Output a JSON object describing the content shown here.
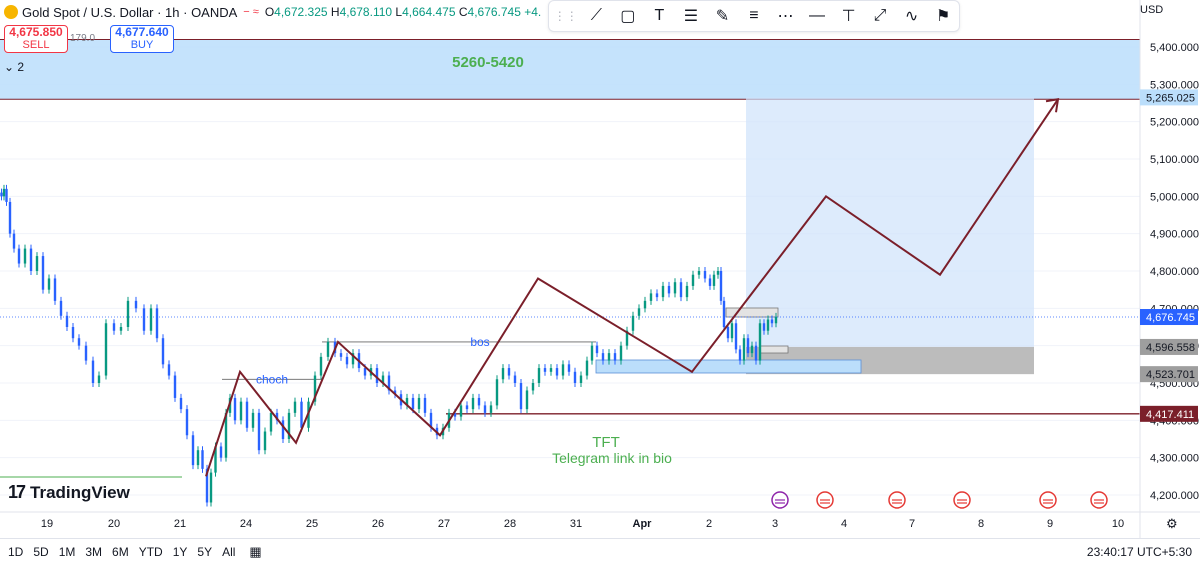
{
  "header": {
    "symbol_title": "Gold Spot / U.S. Dollar · 1h · OANDA",
    "open_label": "O",
    "open": "4,672.325",
    "high_label": "H",
    "high": "4,678.110",
    "low_label": "L",
    "low": "4,664.475",
    "close_label": "C",
    "close": "4,676.745",
    "change": "+4.",
    "currency": "USD"
  },
  "trade": {
    "sell_price": "4,675.850",
    "sell_label": "SELL",
    "spread": "179.0",
    "buy_price": "4,677.640",
    "buy_label": "BUY"
  },
  "indicators_toggle": "2",
  "drawing_tools": [
    "trend-line-icon",
    "rectangle-icon",
    "text-icon",
    "long-position-icon",
    "brush-icon",
    "fib-icon",
    "measure-icon",
    "horizontal-line-icon",
    "cross-line-icon",
    "price-range-icon",
    "path-icon",
    "flag-icon"
  ],
  "annotations": {
    "target_zone_label": "5260-5420",
    "bos_label": "bos",
    "choch_label": "choch",
    "tft_label": "TFT",
    "telegram_label": "Telegram link in bio"
  },
  "branding": {
    "logo_text": "TradingView"
  },
  "bottom_bar": {
    "timeframes": [
      "1D",
      "5D",
      "1M",
      "3M",
      "6M",
      "YTD",
      "1Y",
      "5Y",
      "All"
    ],
    "clock": "23:40:17 UTC+5:30"
  },
  "colors": {
    "up": "#089981",
    "down": "#2962ff",
    "zigzag": "#7b1f2a",
    "zone_fill": "#bbdefb",
    "projection_fill": "#cfe3fb",
    "gray_box": "#9e9e9e",
    "text_green": "#4caf50",
    "text_blue": "#2962ff"
  },
  "chart_data": {
    "type": "candlestick",
    "title": "Gold Spot / U.S. Dollar · 1h · OANDA",
    "x_tick_labels": [
      "19",
      "20",
      "21",
      "24",
      "25",
      "26",
      "27",
      "28",
      "31",
      "Apr",
      "2",
      "3",
      "4",
      "7",
      "8",
      "9",
      "10"
    ],
    "y_tick_labels": [
      4200,
      4300,
      4400,
      4500,
      4600,
      4700,
      4800,
      4900,
      5000,
      5100,
      5200,
      5300,
      5400
    ],
    "ylim": [
      4170,
      5430
    ],
    "price_labels": [
      {
        "value": 5265.025,
        "text": "5,265.025",
        "style": "zone"
      },
      {
        "value": 4676.745,
        "text": "4,676.745",
        "style": "last"
      },
      {
        "value": 4596.558,
        "text": "4,596.558",
        "style": "gray"
      },
      {
        "value": 4523.701,
        "text": "4,523.701",
        "style": "gray"
      },
      {
        "value": 4417.411,
        "text": "4,417.411",
        "style": "red"
      }
    ],
    "target_zone": [
      5260,
      5420
    ],
    "price_path": [
      [
        0,
        5010
      ],
      [
        3,
        5000
      ],
      [
        5,
        5020
      ],
      [
        8,
        4985
      ],
      [
        12,
        4900
      ],
      [
        16,
        4860
      ],
      [
        22,
        4820
      ],
      [
        28,
        4860
      ],
      [
        34,
        4800
      ],
      [
        40,
        4840
      ],
      [
        46,
        4750
      ],
      [
        52,
        4780
      ],
      [
        58,
        4720
      ],
      [
        64,
        4680
      ],
      [
        70,
        4650
      ],
      [
        76,
        4620
      ],
      [
        82,
        4600
      ],
      [
        90,
        4560
      ],
      [
        96,
        4500
      ],
      [
        102,
        4520
      ],
      [
        110,
        4660
      ],
      [
        118,
        4640
      ],
      [
        124,
        4650
      ],
      [
        132,
        4720
      ],
      [
        140,
        4700
      ],
      [
        148,
        4640
      ],
      [
        154,
        4700
      ],
      [
        160,
        4620
      ],
      [
        166,
        4550
      ],
      [
        172,
        4520
      ],
      [
        178,
        4460
      ],
      [
        184,
        4430
      ],
      [
        190,
        4360
      ],
      [
        196,
        4280
      ],
      [
        200,
        4320
      ],
      [
        205,
        4270
      ],
      [
        209,
        4180
      ],
      [
        213,
        4260
      ],
      [
        218,
        4330
      ],
      [
        224,
        4300
      ],
      [
        228,
        4420
      ],
      [
        232,
        4460
      ],
      [
        238,
        4400
      ],
      [
        244,
        4450
      ],
      [
        250,
        4380
      ],
      [
        256,
        4420
      ],
      [
        262,
        4320
      ],
      [
        268,
        4370
      ],
      [
        274,
        4420
      ],
      [
        280,
        4400
      ],
      [
        286,
        4350
      ],
      [
        292,
        4420
      ],
      [
        298,
        4450
      ],
      [
        305,
        4380
      ],
      [
        312,
        4450
      ],
      [
        318,
        4520
      ],
      [
        324,
        4570
      ],
      [
        332,
        4610
      ],
      [
        338,
        4580
      ],
      [
        344,
        4570
      ],
      [
        350,
        4550
      ],
      [
        356,
        4580
      ],
      [
        362,
        4540
      ],
      [
        368,
        4520
      ],
      [
        374,
        4540
      ],
      [
        380,
        4500
      ],
      [
        386,
        4520
      ],
      [
        392,
        4480
      ],
      [
        398,
        4470
      ],
      [
        404,
        4440
      ],
      [
        410,
        4460
      ],
      [
        416,
        4430
      ],
      [
        422,
        4460
      ],
      [
        428,
        4420
      ],
      [
        434,
        4380
      ],
      [
        440,
        4360
      ],
      [
        446,
        4380
      ],
      [
        452,
        4420
      ],
      [
        458,
        4410
      ],
      [
        464,
        4440
      ],
      [
        470,
        4430
      ],
      [
        476,
        4460
      ],
      [
        482,
        4440
      ],
      [
        488,
        4420
      ],
      [
        494,
        4440
      ],
      [
        500,
        4510
      ],
      [
        506,
        4540
      ],
      [
        512,
        4520
      ],
      [
        518,
        4500
      ],
      [
        524,
        4430
      ],
      [
        530,
        4480
      ],
      [
        536,
        4500
      ],
      [
        542,
        4540
      ],
      [
        548,
        4530
      ],
      [
        554,
        4540
      ],
      [
        560,
        4520
      ],
      [
        566,
        4550
      ],
      [
        572,
        4530
      ],
      [
        578,
        4500
      ],
      [
        584,
        4520
      ],
      [
        590,
        4560
      ],
      [
        594,
        4600
      ],
      [
        600,
        4580
      ],
      [
        606,
        4560
      ],
      [
        612,
        4580
      ],
      [
        618,
        4560
      ],
      [
        624,
        4600
      ],
      [
        630,
        4640
      ],
      [
        636,
        4680
      ],
      [
        642,
        4700
      ],
      [
        648,
        4720
      ],
      [
        654,
        4740
      ],
      [
        660,
        4730
      ],
      [
        666,
        4760
      ],
      [
        672,
        4740
      ],
      [
        678,
        4770
      ],
      [
        684,
        4730
      ],
      [
        690,
        4760
      ],
      [
        696,
        4790
      ],
      [
        702,
        4800
      ],
      [
        708,
        4780
      ],
      [
        712,
        4760
      ],
      [
        716,
        4790
      ],
      [
        720,
        4800
      ],
      [
        722,
        4720
      ],
      [
        726,
        4650
      ],
      [
        730,
        4620
      ],
      [
        734,
        4660
      ],
      [
        738,
        4590
      ],
      [
        742,
        4560
      ],
      [
        746,
        4620
      ],
      [
        750,
        4580
      ],
      [
        754,
        4600
      ],
      [
        758,
        4560
      ],
      [
        762,
        4660
      ],
      [
        766,
        4640
      ],
      [
        770,
        4670
      ],
      [
        774,
        4660
      ],
      [
        778,
        4677
      ]
    ],
    "zigzag_path": [
      [
        206,
        4250
      ],
      [
        240,
        4530
      ],
      [
        296,
        4340
      ],
      [
        338,
        4610
      ],
      [
        440,
        4360
      ],
      [
        538,
        4780
      ],
      [
        692,
        4530
      ],
      [
        826,
        5000
      ],
      [
        940,
        4790
      ],
      [
        1058,
        5260
      ]
    ],
    "bos_level": 4610,
    "choch_level": 4510,
    "support_level": 4417.411,
    "projection_box": {
      "x_from": 746,
      "x_to": 1034,
      "price_top": 5265.025,
      "price_bottom": 4596.558
    },
    "gray_box": {
      "x_from": 746,
      "x_to": 1034,
      "price_top": 4596.558,
      "price_bottom": 4523.701
    }
  }
}
